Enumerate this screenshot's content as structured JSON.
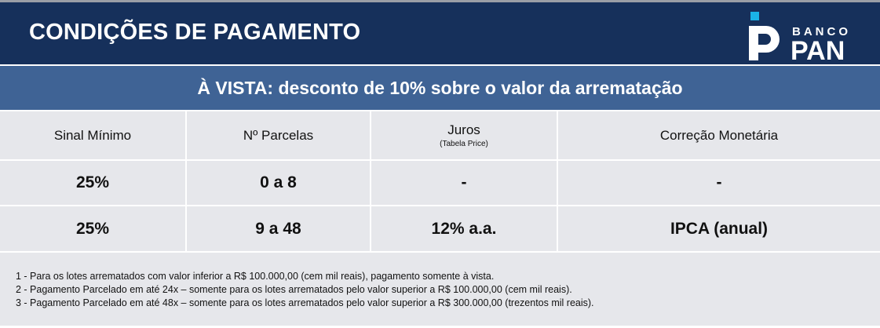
{
  "header": {
    "title": "CONDIÇÕES DE PAGAMENTO",
    "logo": {
      "text_top": "BANCO",
      "text_bottom": "PAN",
      "accent": "#1ab3e6"
    }
  },
  "banner": {
    "text": "À VISTA: desconto de 10% sobre o valor da arrematação"
  },
  "table": {
    "columns": [
      {
        "label": "Sinal Mínimo",
        "sub": ""
      },
      {
        "label": "Nº Parcelas",
        "sub": ""
      },
      {
        "label": "Juros",
        "sub": "(Tabela Price)"
      },
      {
        "label": "Correção Monetária",
        "sub": ""
      }
    ],
    "rows": [
      [
        "25%",
        "0 a 8",
        "-",
        "-"
      ],
      [
        "25%",
        "9 a 48",
        "12% a.a.",
        "IPCA (anual)"
      ]
    ]
  },
  "notes": [
    "1 - Para os lotes arrematados com valor inferior a R$ 100.000,00 (cem mil reais), pagamento somente à vista.",
    "2 - Pagamento Parcelado em até 24x – somente para os lotes arrematados pelo valor superior a R$ 100.000,00 (cem mil reais).",
    "3 - Pagamento Parcelado em até 48x – somente para os lotes arrematados pelo valor superior a R$ 300.000,00 (trezentos mil reais)."
  ],
  "colors": {
    "header": "#16305b",
    "banner": "#3f6395",
    "cell": "#e6e7eb"
  }
}
